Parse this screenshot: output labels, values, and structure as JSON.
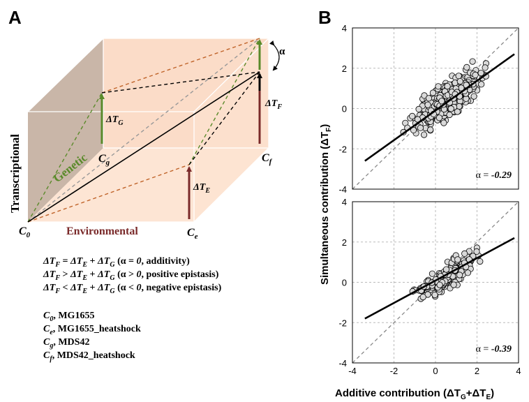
{
  "panel_a": {
    "letter": "A",
    "axis_labels": {
      "transcriptional": "Transcriptional",
      "genetic": "Genetic",
      "environmental": "Environmental"
    },
    "vertices": {
      "c0": {
        "sym": "C",
        "sub": "0"
      },
      "ce": {
        "sym": "C",
        "sub": "e"
      },
      "cg": {
        "sym": "C",
        "sub": "g"
      },
      "cf": {
        "sym": "C",
        "sub": "f"
      }
    },
    "delta_labels": {
      "tg": {
        "sym": "ΔT",
        "sub": "G"
      },
      "te": {
        "sym": "ΔT",
        "sub": "E"
      },
      "tf": {
        "sym": "ΔT",
        "sub": "F"
      }
    },
    "alpha_label": "α",
    "equations": [
      {
        "lhs": "ΔT",
        "lsub": "F",
        "op": " = ",
        "r1": "ΔT",
        "r1sub": "E",
        "plus": " + ",
        "r2": "ΔT",
        "r2sub": "G",
        "cond_pre": " (α = ",
        "cond_val": "0",
        "cond_post": ", additivity)"
      },
      {
        "lhs": "ΔT",
        "lsub": "F",
        "op": " > ",
        "r1": "ΔT",
        "r1sub": "E",
        "plus": " + ",
        "r2": "ΔT",
        "r2sub": "G",
        "cond_pre": " (α > ",
        "cond_val": "0",
        "cond_post": ", positive epistasis)"
      },
      {
        "lhs": "ΔT",
        "lsub": "F",
        "op": " < ",
        "r1": "ΔT",
        "r1sub": "E",
        "plus": " + ",
        "r2": "ΔT",
        "r2sub": "G",
        "cond_pre": " (α < ",
        "cond_val": "0",
        "cond_post": ", negative epistasis)"
      }
    ],
    "legend": [
      {
        "sym": "C",
        "sub": "0",
        "text": ", MG1655"
      },
      {
        "sym": "C",
        "sub": "e",
        "text": ", MG1655_heatshock"
      },
      {
        "sym": "C",
        "sub": "g",
        "text": ", MDS42"
      },
      {
        "sym": "C",
        "sub": "f",
        "text": ", MDS42_heatshock"
      }
    ]
  },
  "panel_b": {
    "letter": "B",
    "y_title": {
      "text": "Simultaneous contribution (ΔT",
      "sub": "F",
      "close": ")"
    },
    "x_title": {
      "text": "Additive contribution (ΔT",
      "sub1": "G",
      "mid": "+ΔT",
      "sub2": "E",
      "close": ")"
    }
  },
  "chart_data": [
    {
      "type": "scatter",
      "xlim": [
        -4,
        4
      ],
      "ylim": [
        -4,
        4
      ],
      "x_ticks": [
        "-4",
        "-2",
        "0",
        "2",
        "4"
      ],
      "y_ticks": [
        "-4",
        "-2",
        "0",
        "2",
        "4"
      ],
      "grid": true,
      "reference_line": {
        "style": "dashed",
        "slope": 1,
        "intercept": 0
      },
      "fit_line": {
        "x": [
          -3.4,
          3.8
        ],
        "y": [
          -2.6,
          2.7
        ]
      },
      "annotation": {
        "prefix": "α = ",
        "value": "-0.29"
      },
      "point_color": "#d9d9d9",
      "n_points": 420,
      "seed": 11,
      "slope": 0.74,
      "noise": 0.55
    },
    {
      "type": "scatter",
      "xlim": [
        -4,
        4
      ],
      "ylim": [
        -4,
        4
      ],
      "x_ticks": [
        "-4",
        "-2",
        "0",
        "2",
        "4"
      ],
      "y_ticks": [
        "-4",
        "-2",
        "0",
        "2",
        "4"
      ],
      "grid": true,
      "reference_line": {
        "style": "dashed",
        "slope": 1,
        "intercept": 0
      },
      "fit_line": {
        "x": [
          -3.4,
          3.8
        ],
        "y": [
          -1.8,
          2.2
        ]
      },
      "annotation": {
        "prefix": "α = ",
        "value": "-0.39"
      },
      "point_color": "#d9d9d9",
      "n_points": 230,
      "seed": 7,
      "slope": 0.56,
      "noise": 0.4
    }
  ]
}
